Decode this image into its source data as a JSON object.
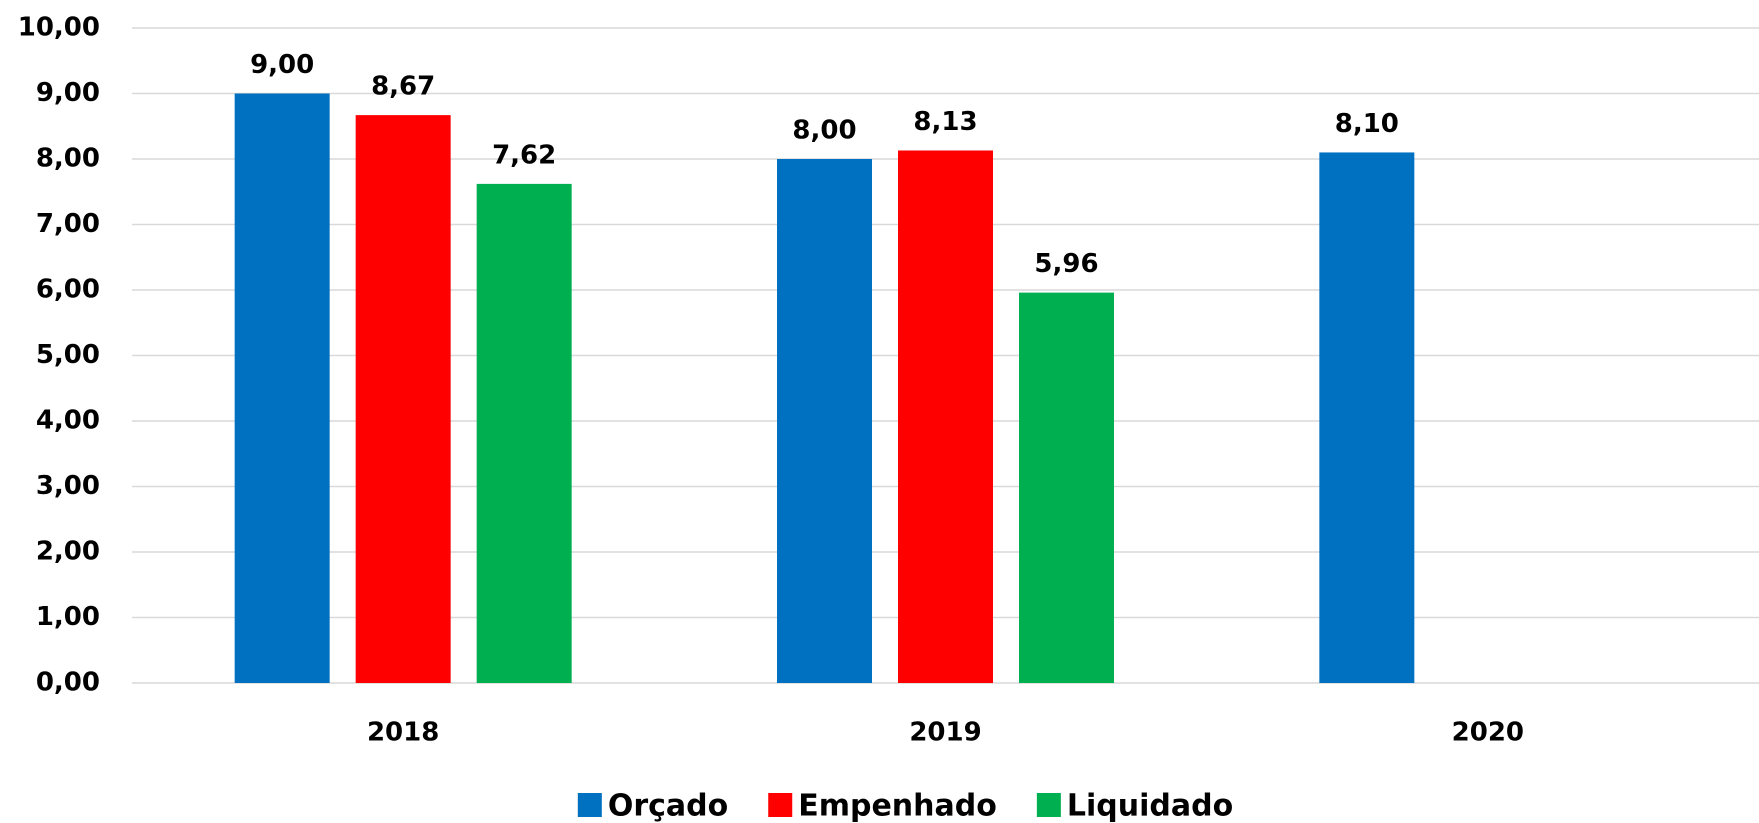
{
  "chart_data": {
    "type": "bar",
    "categories": [
      "2018",
      "2019",
      "2020"
    ],
    "series": [
      {
        "name": "Orçado",
        "color": "#0070c0",
        "values": [
          9.0,
          8.0,
          8.1
        ],
        "value_labels": [
          "9,00",
          "8,00",
          "8,10"
        ]
      },
      {
        "name": "Empenhado",
        "color": "#ff0000",
        "values": [
          8.67,
          8.13,
          null
        ],
        "value_labels": [
          "8,67",
          "8,13",
          null
        ]
      },
      {
        "name": "Liquidado",
        "color": "#00b050",
        "values": [
          7.62,
          5.96,
          null
        ],
        "value_labels": [
          "7,62",
          "5,96",
          null
        ]
      }
    ],
    "ylim": [
      0,
      10
    ],
    "yticks": [
      {
        "value": 0,
        "label": "0,00"
      },
      {
        "value": 1,
        "label": "1,00"
      },
      {
        "value": 2,
        "label": "2,00"
      },
      {
        "value": 3,
        "label": "3,00"
      },
      {
        "value": 4,
        "label": "4,00"
      },
      {
        "value": 5,
        "label": "5,00"
      },
      {
        "value": 6,
        "label": "6,00"
      },
      {
        "value": 7,
        "label": "7,00"
      },
      {
        "value": 8,
        "label": "8,00"
      },
      {
        "value": 9,
        "label": "9,00"
      },
      {
        "value": 10,
        "label": "10,00"
      }
    ],
    "grid": true,
    "legend": "bottom"
  }
}
